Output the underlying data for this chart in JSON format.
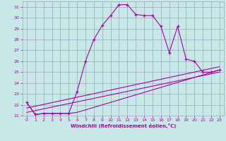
{
  "xlabel": "Windchill (Refroidissement éolien,°C)",
  "xlim": [
    -0.5,
    23.5
  ],
  "ylim": [
    21,
    31.5
  ],
  "xticks": [
    0,
    1,
    2,
    3,
    4,
    5,
    6,
    7,
    8,
    9,
    10,
    11,
    12,
    13,
    14,
    15,
    16,
    17,
    18,
    19,
    20,
    21,
    22,
    23
  ],
  "yticks": [
    21,
    22,
    23,
    24,
    25,
    26,
    27,
    28,
    29,
    30,
    31
  ],
  "bg_color": "#c8e8e8",
  "line_color": "#aa00aa",
  "grid_color": "#99aabb",
  "line1_x": [
    0,
    1,
    2,
    3,
    4,
    5,
    6,
    7,
    8,
    9,
    10,
    11,
    12,
    13,
    14,
    15,
    16,
    17,
    18,
    19,
    20,
    21,
    22,
    23
  ],
  "line1_y": [
    22.2,
    21.1,
    21.2,
    21.2,
    21.2,
    21.2,
    23.2,
    26.0,
    28.0,
    29.3,
    30.2,
    31.2,
    31.2,
    30.3,
    30.2,
    30.2,
    29.2,
    26.8,
    29.2,
    26.2,
    26.0,
    25.0,
    25.0,
    25.2
  ],
  "line2_x": [
    0,
    1,
    2,
    3,
    4,
    5,
    6,
    23
  ],
  "line2_y": [
    22.2,
    21.1,
    21.2,
    21.2,
    21.2,
    21.2,
    21.3,
    25.2
  ],
  "line3_x": [
    0,
    23
  ],
  "line3_y": [
    21.7,
    25.5
  ],
  "line4_x": [
    0,
    23
  ],
  "line4_y": [
    21.3,
    25.0
  ]
}
